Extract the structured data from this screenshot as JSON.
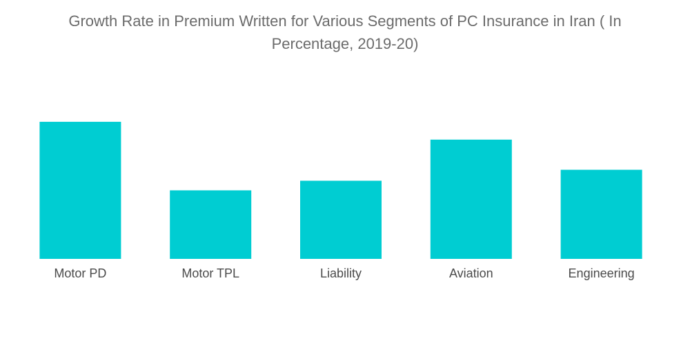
{
  "chart_data": {
    "type": "bar",
    "title": "Growth Rate in Premium Written for Various Segments of PC Insurance in Iran ( In Percentage, 2019-20)",
    "categories": [
      "Motor PD",
      "Motor TPL",
      "Liability",
      "Aviation",
      "Engineering"
    ],
    "values": [
      50,
      25,
      28.5,
      43.5,
      32.5
    ],
    "xlabel": "",
    "ylabel": "",
    "ylim": [
      0,
      55
    ],
    "grid": false,
    "legend": "none",
    "bar_color": "#00cdd2"
  }
}
